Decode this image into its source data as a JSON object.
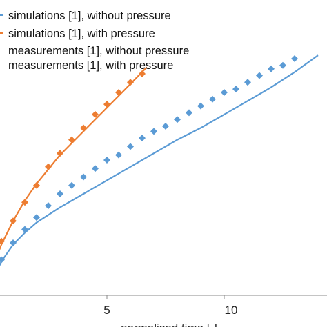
{
  "chart_data": {
    "type": "scatter",
    "title": "",
    "xlabel": "normalised time [-]",
    "ylabel": "",
    "xlim": [
      0,
      14
    ],
    "ylim": [
      0,
      20
    ],
    "x_ticks": [
      5,
      10
    ],
    "x_tick_labels": [
      "5",
      "10"
    ],
    "grid": false,
    "legend_position": "top-left",
    "series": [
      {
        "name": "simulations [1], without pressure",
        "kind": "line",
        "color": "#5b9bd5",
        "x": [
          0,
          0.5,
          1,
          1.5,
          2,
          3,
          4,
          5,
          6,
          7,
          8,
          9,
          10,
          11,
          12,
          13,
          14
        ],
        "y": [
          0.5,
          2.0,
          3.0,
          3.7,
          4.3,
          5.2,
          6.0,
          6.8,
          7.6,
          8.4,
          9.2,
          9.9,
          10.7,
          11.5,
          12.3,
          13.2,
          14.2
        ]
      },
      {
        "name": "simulations [1], with pressure",
        "kind": "line",
        "color": "#ed7d31",
        "x": [
          0,
          0.5,
          1,
          1.5,
          2,
          3,
          4,
          5,
          6,
          6.7
        ],
        "y": [
          1.2,
          3.0,
          4.4,
          5.6,
          6.6,
          8.3,
          9.7,
          11.1,
          12.5,
          13.5
        ]
      },
      {
        "name": "measurements [1], without pressure",
        "kind": "markers",
        "color": "#5b9bd5",
        "x": [
          0.5,
          1,
          1.5,
          2,
          2.5,
          3,
          3.5,
          4,
          4.5,
          5,
          5.5,
          6,
          6.5,
          7,
          7.5,
          8,
          8.5,
          9,
          9.5,
          10,
          10.5,
          11,
          11.5,
          12,
          12.5,
          13
        ],
        "y": [
          2.1,
          3.1,
          3.9,
          4.6,
          5.3,
          6.0,
          6.5,
          7.0,
          7.5,
          8.0,
          8.3,
          8.8,
          9.3,
          9.7,
          10.0,
          10.4,
          10.8,
          11.2,
          11.6,
          12.0,
          12.2,
          12.6,
          13.0,
          13.4,
          13.6,
          14.0
        ]
      },
      {
        "name": "measurements [1], with pressure",
        "kind": "markers",
        "color": "#ed7d31",
        "x": [
          0.5,
          1,
          1.5,
          2,
          2.5,
          3,
          3.5,
          4,
          4.5,
          5,
          5.5,
          6,
          6.5
        ],
        "y": [
          3.2,
          4.4,
          5.5,
          6.5,
          7.6,
          8.4,
          9.2,
          9.9,
          10.7,
          11.3,
          12.0,
          12.6,
          13.1
        ]
      }
    ]
  }
}
